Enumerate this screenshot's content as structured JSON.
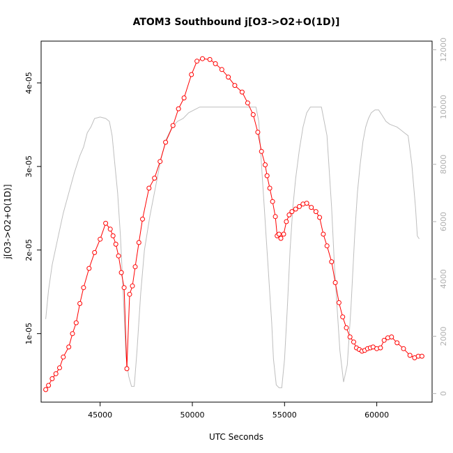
{
  "chart_data": {
    "type": "line",
    "title": "ATOM3 Southbound j[O3->O2+O(1D)]",
    "xlabel": "UTC Seconds",
    "ylabel": "j[O3->O2+O(1D)]",
    "xlim": [
      41800,
      63000
    ],
    "ylim": [
      1.8e-06,
      4.5e-05
    ],
    "y2lim": [
      -300,
      12300
    ],
    "x_ticks": [
      45000,
      50000,
      55000,
      60000
    ],
    "x_tick_labels": [
      "45000",
      "50000",
      "55000",
      "60000"
    ],
    "y_ticks": [
      1e-05,
      2e-05,
      3e-05,
      4e-05
    ],
    "y_tick_labels": [
      "1e-05",
      "2e-05",
      "3e-05",
      "4e-05"
    ],
    "y2_ticks": [
      0,
      2000,
      4000,
      6000,
      8000,
      10000,
      12000
    ],
    "y2_tick_labels": [
      "0",
      "2000",
      "4000",
      "6000",
      "8000",
      "10000",
      "12000"
    ],
    "colors": {
      "primary": "#ff0000",
      "secondary": "#bebebe",
      "axis": "#000000",
      "right_axis": "#b0b0b0"
    },
    "series": [
      {
        "name": "j[O3->O2+O(1D)]",
        "axis": "left",
        "style": "line+circle",
        "color": "#ff0000",
        "x": [
          42050,
          42200,
          42400,
          42600,
          42800,
          43000,
          43300,
          43500,
          43700,
          43900,
          44100,
          44400,
          44700,
          45000,
          45300,
          45550,
          45700,
          45850,
          46000,
          46150,
          46300,
          46450,
          46600,
          46750,
          46900,
          47100,
          47300,
          47650,
          47950,
          48250,
          48550,
          48950,
          49250,
          49550,
          49950,
          50250,
          50550,
          50950,
          51250,
          51600,
          51950,
          52300,
          52700,
          53000,
          53300,
          53550,
          53750,
          53950,
          54050,
          54200,
          54350,
          54500,
          54600,
          54700,
          54800,
          54950,
          55100,
          55250,
          55400,
          55600,
          55800,
          56000,
          56200,
          56450,
          56700,
          56900,
          57100,
          57300,
          57550,
          57750,
          57950,
          58150,
          58350,
          58550,
          58750,
          58900,
          59050,
          59200,
          59350,
          59500,
          59650,
          59800,
          60000,
          60200,
          60400,
          60600,
          60800,
          61100,
          61450,
          61800,
          62050,
          62250,
          62450
        ],
        "y": [
          3.3e-06,
          3.8e-06,
          4.6e-06,
          5.2e-06,
          5.9e-06,
          7.2e-06,
          8.4e-06,
          1e-05,
          1.13e-05,
          1.36e-05,
          1.55e-05,
          1.78e-05,
          1.97e-05,
          2.13e-05,
          2.32e-05,
          2.25e-05,
          2.17e-05,
          2.07e-05,
          1.93e-05,
          1.73e-05,
          1.55e-05,
          5.8e-06,
          1.47e-05,
          1.57e-05,
          1.8e-05,
          2.09e-05,
          2.37e-05,
          2.74e-05,
          2.86e-05,
          3.06e-05,
          3.29e-05,
          3.49e-05,
          3.69e-05,
          3.82e-05,
          4.1e-05,
          4.26e-05,
          4.29e-05,
          4.28e-05,
          4.23e-05,
          4.16e-05,
          4.07e-05,
          3.97e-05,
          3.89e-05,
          3.76e-05,
          3.62e-05,
          3.41e-05,
          3.18e-05,
          3.02e-05,
          2.89e-05,
          2.74e-05,
          2.58e-05,
          2.4e-05,
          2.17e-05,
          2.19e-05,
          2.14e-05,
          2.19e-05,
          2.34e-05,
          2.42e-05,
          2.46e-05,
          2.49e-05,
          2.52e-05,
          2.55e-05,
          2.56e-05,
          2.51e-05,
          2.46e-05,
          2.39e-05,
          2.19e-05,
          2.05e-05,
          1.86e-05,
          1.61e-05,
          1.37e-05,
          1.2e-05,
          1.07e-05,
          9.6e-06,
          9e-06,
          8.3e-06,
          8.1e-06,
          7.9e-06,
          8e-06,
          8.2e-06,
          8.3e-06,
          8.4e-06,
          8.2e-06,
          8.3e-06,
          9.2e-06,
          9.5e-06,
          9.6e-06,
          8.9e-06,
          8.2e-06,
          7.4e-06,
          7.1e-06,
          7.3e-06,
          7.3e-06
        ],
        "x_marker_note": "same x as y"
      },
      {
        "name": "secondary (right axis)",
        "axis": "right",
        "style": "line",
        "color": "#bebebe",
        "x": [
          42050,
          42200,
          42400,
          42700,
          43000,
          43300,
          43600,
          43900,
          44100,
          44300,
          44500,
          44700,
          45000,
          45300,
          45500,
          45650,
          45800,
          45950,
          46100,
          46250,
          46400,
          46550,
          46700,
          46850,
          47000,
          47200,
          47400,
          47700,
          48000,
          48300,
          48600,
          48900,
          49200,
          49500,
          49800,
          50100,
          50400,
          50600,
          50900,
          51200,
          51600,
          52000,
          52400,
          52800,
          53200,
          53450,
          53600,
          53700,
          53800,
          53900,
          54000,
          54100,
          54200,
          54300,
          54400,
          54550,
          54700,
          54850,
          55000,
          55150,
          55300,
          55450,
          55600,
          55800,
          56000,
          56200,
          56400,
          56600,
          56800,
          57000,
          57300,
          57550,
          57700,
          57850,
          58000,
          58200,
          58400,
          58600,
          58800,
          58950,
          59100,
          59250,
          59400,
          59550,
          59700,
          59900,
          60100,
          60300,
          60500,
          60700,
          60900,
          61100,
          61300,
          61500,
          61700,
          61900,
          62100,
          62200,
          62300
        ],
        "y": [
          2600,
          3600,
          4500,
          5400,
          6300,
          7000,
          7700,
          8300,
          8600,
          9100,
          9300,
          9600,
          9650,
          9600,
          9500,
          9000,
          8000,
          7000,
          5500,
          3500,
          1300,
          600,
          250,
          250,
          1500,
          3500,
          5000,
          6200,
          7200,
          8200,
          8900,
          9300,
          9500,
          9600,
          9800,
          9900,
          10000,
          10000,
          10000,
          10000,
          10000,
          10000,
          10000,
          10000,
          10000,
          10000,
          9500,
          8500,
          7500,
          6500,
          5500,
          4500,
          3500,
          2500,
          1200,
          300,
          200,
          200,
          1200,
          3000,
          5000,
          6500,
          7500,
          8500,
          9300,
          9800,
          10000,
          10000,
          10000,
          10000,
          9000,
          6500,
          4500,
          3000,
          1500,
          400,
          1000,
          3000,
          5500,
          7000,
          8000,
          8800,
          9300,
          9600,
          9800,
          9900,
          9900,
          9700,
          9500,
          9400,
          9350,
          9300,
          9200,
          9100,
          9000,
          8000,
          6500,
          5500,
          5400
        ],
        "note": "approximate trace"
      }
    ]
  }
}
